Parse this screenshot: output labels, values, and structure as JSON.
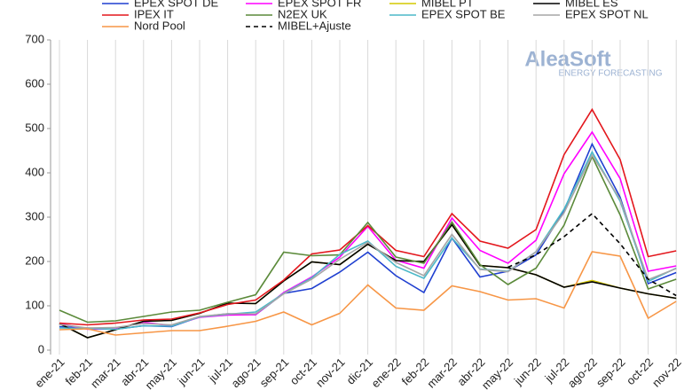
{
  "chart_data": {
    "type": "line",
    "watermark": {
      "title": "AleaSoft",
      "subtitle": "ENERGY FORECASTING"
    },
    "categories": [
      "ene-21",
      "feb-21",
      "mar-21",
      "abr-21",
      "may-21",
      "jun-21",
      "jul-21",
      "ago-21",
      "sep-21",
      "oct-21",
      "nov-21",
      "dic-21",
      "ene-22",
      "feb-22",
      "mar-22",
      "abr-22",
      "may-22",
      "jun-22",
      "jul-22",
      "ago-22",
      "sep-22",
      "oct-22",
      "nov-22"
    ],
    "ylim": [
      0,
      700
    ],
    "yticks": [
      0,
      100,
      200,
      300,
      400,
      500,
      600,
      700
    ],
    "grid": "vertical",
    "series": [
      {
        "name": "EPEX SPOT DE",
        "color": "#1f3fd0",
        "values": [
          53,
          50,
          47,
          55,
          53,
          75,
          82,
          80,
          128,
          139,
          176,
          221,
          168,
          130,
          253,
          165,
          178,
          215,
          315,
          465,
          345,
          150,
          175
        ]
      },
      {
        "name": "EPEX SPOT FR",
        "color": "#ff00ff",
        "values": [
          60,
          47,
          48,
          63,
          55,
          74,
          79,
          80,
          130,
          165,
          210,
          279,
          203,
          185,
          298,
          225,
          196,
          248,
          398,
          492,
          387,
          178,
          190
        ]
      },
      {
        "name": "MIBEL PT",
        "color": "#d4c800",
        "values": [
          60,
          28,
          46,
          65,
          67,
          83,
          106,
          105,
          156,
          199,
          193,
          239,
          202,
          200,
          283,
          191,
          186,
          170,
          142,
          157,
          140,
          127,
          117
        ]
      },
      {
        "name": "MIBEL ES",
        "color": "#000000",
        "values": [
          60,
          28,
          46,
          65,
          67,
          83,
          106,
          105,
          156,
          199,
          193,
          239,
          202,
          200,
          283,
          191,
          186,
          170,
          142,
          154,
          140,
          127,
          117
        ]
      },
      {
        "name": "IPEX IT",
        "color": "#e3161c",
        "values": [
          61,
          57,
          61,
          68,
          70,
          84,
          103,
          113,
          158,
          217,
          226,
          281,
          225,
          211,
          308,
          246,
          230,
          272,
          441,
          543,
          430,
          211,
          224
        ]
      },
      {
        "name": "N2EX UK",
        "color": "#5b8a3a",
        "values": [
          90,
          63,
          66,
          76,
          86,
          90,
          108,
          125,
          221,
          213,
          215,
          288,
          210,
          196,
          289,
          193,
          148,
          185,
          282,
          437,
          305,
          138,
          160
        ]
      },
      {
        "name": "EPEX SPOT BE",
        "color": "#4bb8c8",
        "values": [
          50,
          49,
          47,
          55,
          54,
          75,
          81,
          86,
          128,
          163,
          216,
          246,
          189,
          162,
          253,
          183,
          178,
          222,
          318,
          447,
          336,
          155,
          185
        ]
      },
      {
        "name": "EPEX SPOT NL",
        "color": "#a6a6a6",
        "values": [
          58,
          50,
          51,
          60,
          57,
          76,
          82,
          82,
          127,
          160,
          205,
          243,
          198,
          168,
          261,
          182,
          177,
          222,
          310,
          440,
          340,
          159,
          184
        ]
      },
      {
        "name": "Nord Pool",
        "color": "#f79646",
        "values": [
          46,
          48,
          34,
          39,
          44,
          44,
          54,
          65,
          86,
          57,
          83,
          147,
          95,
          90,
          145,
          132,
          113,
          116,
          95,
          222,
          212,
          72,
          110
        ]
      },
      {
        "name": "MIBEL+Ajuste",
        "color": "#000000",
        "dashed": true,
        "values": [
          null,
          null,
          null,
          null,
          null,
          null,
          null,
          null,
          null,
          null,
          null,
          null,
          null,
          null,
          null,
          null,
          187,
          215,
          256,
          308,
          240,
          160,
          123
        ]
      }
    ]
  }
}
